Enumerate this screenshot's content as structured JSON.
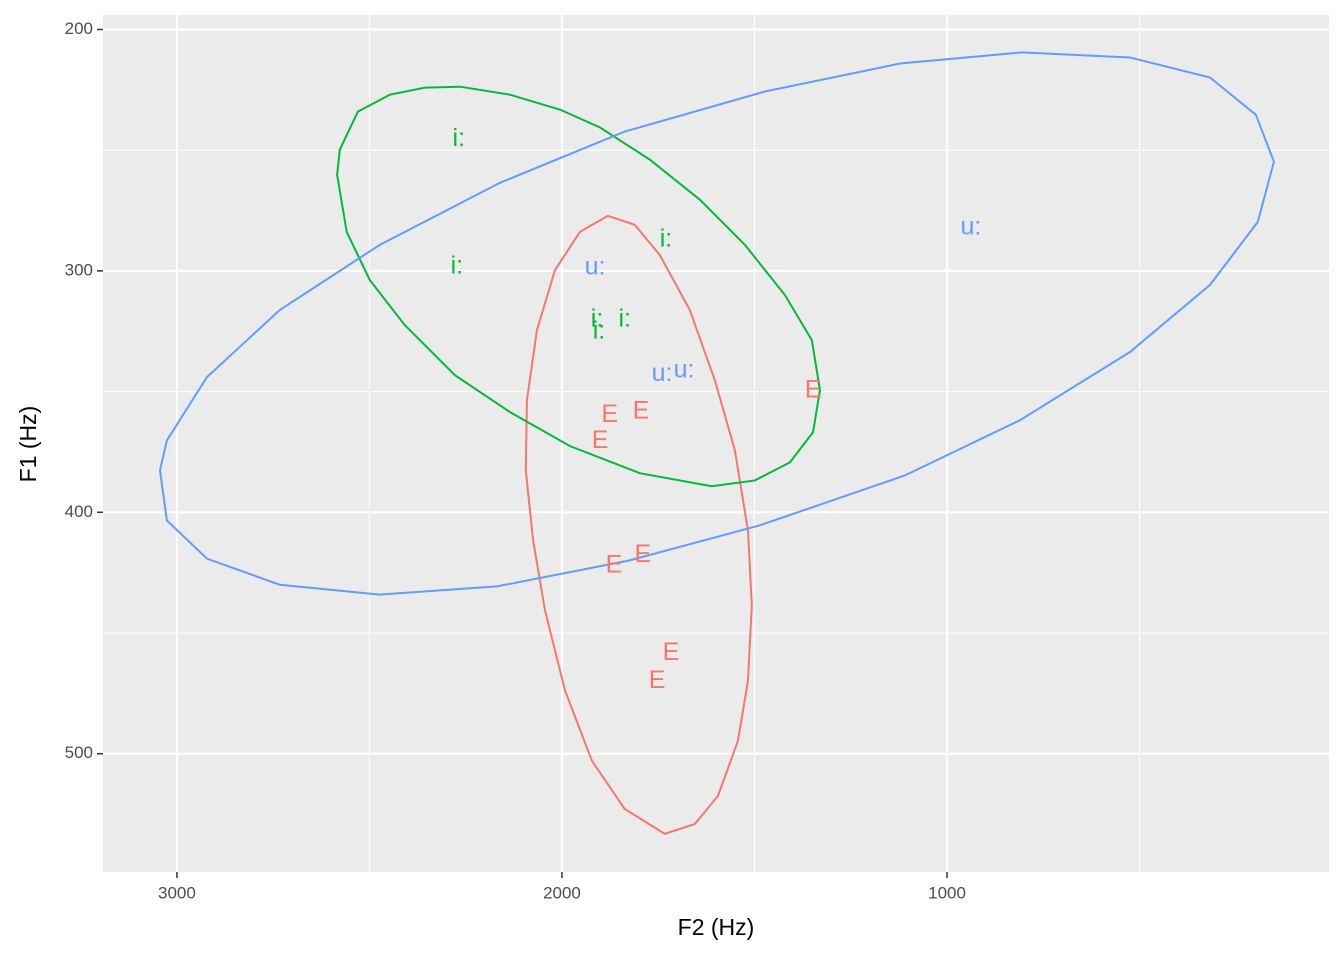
{
  "chart_data": {
    "type": "vowel-ellipse",
    "x_label": "F2 (Hz)",
    "y_label": "F1 (Hz)",
    "xlim": [
      3192,
      8
    ],
    "ylim": [
      194,
      549
    ],
    "xticks": [
      3000,
      2000,
      1000
    ],
    "yticks": [
      200,
      300,
      400,
      500
    ],
    "xminor": [
      2500,
      1500,
      500
    ],
    "yminor": [
      250,
      350,
      450
    ],
    "grid": true,
    "series": [
      {
        "name": "E",
        "color": "#F8766D",
        "x": [
          1348,
          1876,
          1795,
          1901,
          1865,
          1790,
          1717,
          1753
        ],
        "y": [
          349.8,
          359.8,
          358.5,
          370.6,
          422.1,
          417.9,
          458.5,
          470.1
        ],
        "ellipse": {
          "x": [
            1881,
            1953,
            2018,
            2065,
            2091,
            2094,
            2075,
            2044,
            1992,
            1922,
            1837,
            1733,
            1655,
            1595,
            1543,
            1517,
            1507,
            1517,
            1551,
            1603,
            1668,
            1746,
            1811
          ],
          "y": [
            277.2,
            283.8,
            299.6,
            324.5,
            353.5,
            382.6,
            411.6,
            440.7,
            473.9,
            503.0,
            522.9,
            533.2,
            529.1,
            517.5,
            494.7,
            469.8,
            438.6,
            407.5,
            374.3,
            345.3,
            316.2,
            293.4,
            280.9
          ]
        }
      },
      {
        "name": "i:",
        "color": "#00BA38",
        "x": [
          2268,
          2273,
          1730,
          1909,
          1904,
          1837
        ],
        "y": [
          245.6,
          298.3,
          287.1,
          320.3,
          325.3,
          320.3
        ],
        "ellipse": {
          "x": [
            2584,
            2559,
            2499,
            2408,
            2278,
            2135,
            1979,
            1798,
            1611,
            1499,
            1408,
            1348,
            1330,
            1351,
            1421,
            1525,
            1642,
            1772,
            1901,
            2005,
            2135,
            2265,
            2356,
            2447,
            2530,
            2577
          ],
          "y": [
            260.2,
            283.9,
            303.8,
            322.5,
            343.2,
            358.5,
            372.6,
            383.8,
            389.2,
            386.8,
            379.3,
            366.8,
            349.4,
            328.7,
            310.0,
            289.2,
            270.5,
            253.9,
            240.6,
            233.2,
            227.0,
            223.7,
            224.1,
            227.0,
            234.0,
            249.8
          ]
        }
      },
      {
        "name": "u:",
        "color": "#619CFF",
        "x": [
          1914,
          938,
          1740,
          1683
        ],
        "y": [
          298.8,
          282.2,
          342.8,
          341.5
        ],
        "ellipse": {
          "x": [
            3044,
            3026,
            2922,
            2733,
            2473,
            2169,
            1824,
            1486,
            1109,
            811,
            525,
            317,
            193,
            151,
            198,
            317,
            525,
            806,
            1122,
            1473,
            1837,
            2161,
            2473,
            2733,
            2922,
            3026
          ],
          "y": [
            382.6,
            403.4,
            419.2,
            430.0,
            434.1,
            430.7,
            419.9,
            405.4,
            384.7,
            361.9,
            333.6,
            305.8,
            279.7,
            254.8,
            235.3,
            219.9,
            211.6,
            209.5,
            214.1,
            225.7,
            242.3,
            263.5,
            289.2,
            316.2,
            344.0,
            370.2
          ]
        }
      }
    ]
  }
}
